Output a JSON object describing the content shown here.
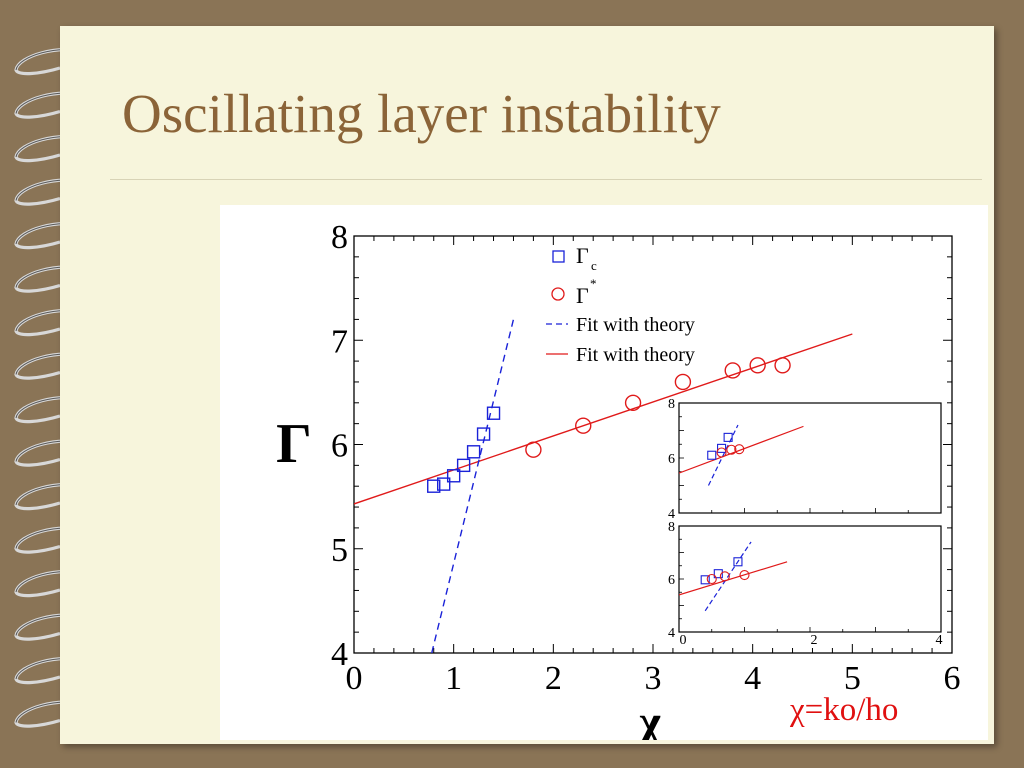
{
  "slide": {
    "title": "Oscillating layer instability",
    "annotation": "χ=ko/ho"
  },
  "colors": {
    "title": "#8b6438",
    "series_gamma_c": "#1a22d8",
    "series_gamma_star": "#e01a1a",
    "annotation": "#e01010"
  },
  "chart_data": {
    "type": "scatter",
    "xlabel": "χ",
    "ylabel": "Γ",
    "xlim": [
      0,
      6
    ],
    "ylim": [
      4,
      8
    ],
    "x_ticks": [
      "0",
      "1",
      "2",
      "3",
      "4",
      "5",
      "6"
    ],
    "y_ticks": [
      "4",
      "5",
      "6",
      "7",
      "8"
    ],
    "legend": {
      "placement": "top-center",
      "entries": [
        {
          "base": "Γ",
          "sub": "c",
          "sup": ""
        },
        {
          "base": "Γ",
          "sub": "",
          "sup": "*"
        },
        {
          "text": "Fit with theory"
        },
        {
          "text": "Fit with theory"
        }
      ]
    },
    "series": [
      {
        "name": "Γc",
        "marker": "square",
        "color": "#1a22d8",
        "points": [
          [
            0.8,
            5.6
          ],
          [
            0.9,
            5.62
          ],
          [
            1.0,
            5.7
          ],
          [
            1.1,
            5.8
          ],
          [
            1.2,
            5.93
          ],
          [
            1.3,
            6.1
          ],
          [
            1.4,
            6.3
          ]
        ]
      },
      {
        "name": "Γ*",
        "marker": "circle",
        "color": "#e01a1a",
        "points": [
          [
            1.8,
            5.95
          ],
          [
            2.3,
            6.18
          ],
          [
            2.8,
            6.4
          ],
          [
            3.3,
            6.6
          ],
          [
            3.8,
            6.71
          ],
          [
            4.05,
            6.76
          ],
          [
            4.3,
            6.76
          ]
        ]
      },
      {
        "name": "Fit with theory",
        "style": "dashed",
        "color": "#1a22d8",
        "points": [
          [
            0.78,
            4.0
          ],
          [
            1.6,
            7.2
          ]
        ]
      },
      {
        "name": "Fit with theory",
        "style": "solid",
        "color": "#e01a1a",
        "points": [
          [
            0.0,
            5.43
          ],
          [
            5.0,
            7.06
          ]
        ]
      }
    ],
    "insets": [
      {
        "xlim": [
          0,
          4
        ],
        "ylim": [
          4,
          8
        ],
        "x_ticks": [],
        "y_ticks": [
          "4",
          "6",
          "8"
        ],
        "squares": [
          [
            0.5,
            6.1
          ],
          [
            0.65,
            6.35
          ],
          [
            0.75,
            6.75
          ]
        ],
        "circles": [
          [
            0.65,
            6.2
          ],
          [
            0.8,
            6.3
          ],
          [
            0.92,
            6.32
          ]
        ],
        "dashed_fit": [
          [
            0.45,
            5.0
          ],
          [
            0.9,
            7.2
          ]
        ],
        "solid_fit": [
          [
            0.0,
            5.45
          ],
          [
            1.9,
            7.15
          ]
        ]
      },
      {
        "xlim": [
          0,
          4
        ],
        "ylim": [
          4,
          8
        ],
        "x_ticks": [
          "0",
          "2",
          "4"
        ],
        "y_ticks": [
          "4",
          "6",
          "8"
        ],
        "squares": [
          [
            0.4,
            5.97
          ],
          [
            0.6,
            6.2
          ],
          [
            0.9,
            6.65
          ]
        ],
        "circles": [
          [
            0.5,
            6.0
          ],
          [
            0.7,
            6.1
          ],
          [
            1.0,
            6.15
          ]
        ],
        "dashed_fit": [
          [
            0.4,
            4.8
          ],
          [
            1.1,
            7.4
          ]
        ],
        "solid_fit": [
          [
            0.0,
            5.4
          ],
          [
            1.65,
            6.65
          ]
        ]
      }
    ]
  }
}
